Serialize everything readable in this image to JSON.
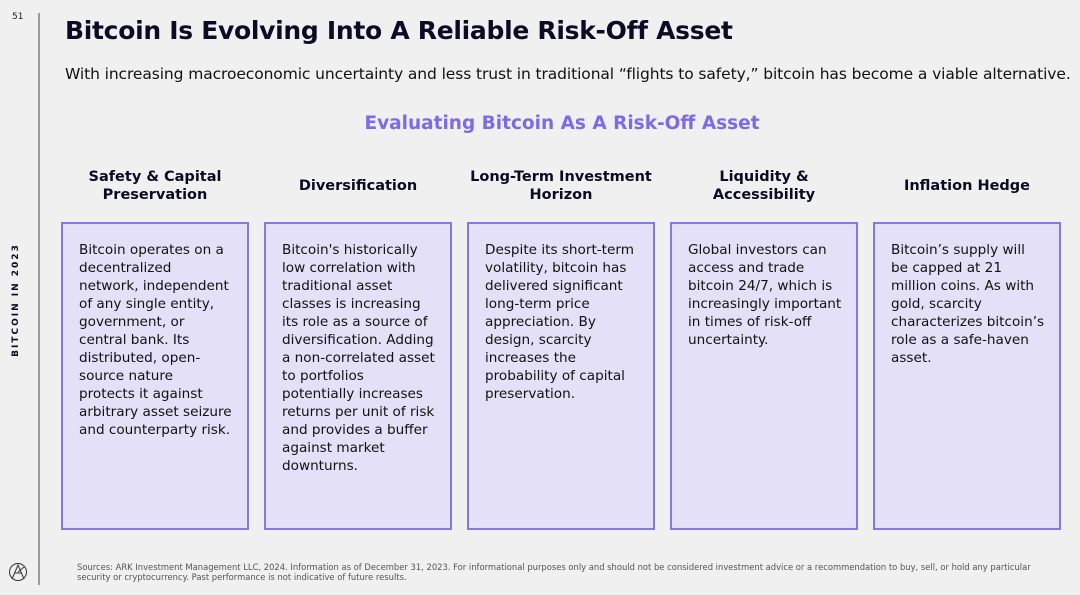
{
  "page_number": "51",
  "sidebar_label": "BITCOIN IN 2023",
  "title": "Bitcoin Is Evolving Into A Reliable Risk-Off Asset",
  "subtitle": "With increasing macroeconomic uncertainty and less trust in traditional “flights to safety,” bitcoin has become a viable alternative.",
  "section_title": "Evaluating Bitcoin As A Risk-Off Asset",
  "accent_color": "#7d6ae6",
  "columns": [
    {
      "heading": "Safety & Capital Preservation",
      "body": "Bitcoin operates on a decentralized network, independent of any single entity, government, or central bank. Its distributed, open-source nature protects it against arbitrary asset seizure and counterparty risk."
    },
    {
      "heading": "Diversification",
      "body": "Bitcoin's historically low correlation with traditional asset classes is increasing its role as a source of diversification. Adding a non-correlated asset to portfolios potentially increases returns per unit of risk and provides a buffer against market downturns."
    },
    {
      "heading": "Long-Term Investment Horizon",
      "body": "Despite its short-term volatility, bitcoin has delivered significant long-term price appreciation. By design, scarcity increases the probability of capital preservation."
    },
    {
      "heading": "Liquidity & Accessibility",
      "body": "Global investors can access and trade bitcoin 24/7, which is increasingly important in times of risk-off uncertainty."
    },
    {
      "heading": "Inflation Hedge",
      "body": "Bitcoin’s supply will be capped at 21 million coins. As with gold, scarcity characterizes bitcoin’s role as a safe-haven asset."
    }
  ],
  "footnote": "Sources: ARK Investment Management LLC, 2024. Information as of December 31, 2023. For informational purposes only and should not be considered investment advice or a recommendation to buy, sell, or hold any particular security or cryptocurrency. Past performance is not indicative of future results.",
  "logo_text": "ARK"
}
